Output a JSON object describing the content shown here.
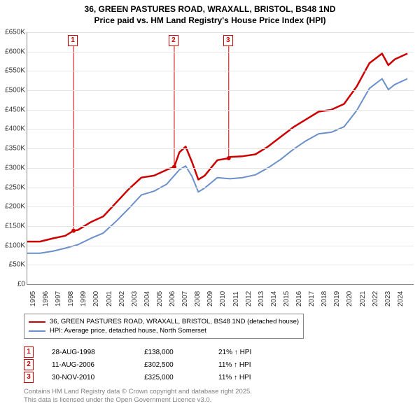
{
  "title": {
    "line1": "36, GREEN PASTURES ROAD, WRAXALL, BRISTOL, BS48 1ND",
    "line2": "Price paid vs. HM Land Registry's House Price Index (HPI)"
  },
  "chart": {
    "type": "line",
    "background_color": "#ffffff",
    "grid_color": "#e5e5e5",
    "axis_color": "#888888",
    "ylim": [
      0,
      650
    ],
    "ytick_step": 50,
    "y_labels": [
      "£0",
      "£50K",
      "£100K",
      "£150K",
      "£200K",
      "£250K",
      "£300K",
      "£350K",
      "£400K",
      "£450K",
      "£500K",
      "£550K",
      "£600K",
      "£650K"
    ],
    "xlim": [
      1995,
      2025.5
    ],
    "x_labels": [
      "1995",
      "1996",
      "1997",
      "1998",
      "1999",
      "2000",
      "2001",
      "2002",
      "2003",
      "2004",
      "2005",
      "2006",
      "2007",
      "2008",
      "2009",
      "2010",
      "2011",
      "2012",
      "2013",
      "2014",
      "2015",
      "2016",
      "2017",
      "2018",
      "2019",
      "2020",
      "2021",
      "2022",
      "2023",
      "2024"
    ],
    "label_fontsize": 10,
    "series": [
      {
        "name": "price_paid",
        "color": "#cc0000",
        "width": 2.5,
        "points": [
          [
            1995,
            110
          ],
          [
            1996,
            110
          ],
          [
            1997,
            118
          ],
          [
            1998,
            125
          ],
          [
            1998.65,
            138
          ],
          [
            1999,
            140
          ],
          [
            2000,
            160
          ],
          [
            2001,
            175
          ],
          [
            2002,
            210
          ],
          [
            2003,
            245
          ],
          [
            2004,
            275
          ],
          [
            2005,
            280
          ],
          [
            2006,
            295
          ],
          [
            2006.6,
            302.5
          ],
          [
            2007,
            340
          ],
          [
            2007.5,
            355
          ],
          [
            2008,
            315
          ],
          [
            2008.5,
            270
          ],
          [
            2009,
            280
          ],
          [
            2010,
            320
          ],
          [
            2010.9,
            325
          ],
          [
            2011,
            328
          ],
          [
            2012,
            330
          ],
          [
            2013,
            335
          ],
          [
            2014,
            355
          ],
          [
            2015,
            380
          ],
          [
            2016,
            405
          ],
          [
            2017,
            425
          ],
          [
            2018,
            445
          ],
          [
            2019,
            450
          ],
          [
            2020,
            465
          ],
          [
            2021,
            510
          ],
          [
            2022,
            570
          ],
          [
            2023,
            595
          ],
          [
            2023.5,
            565
          ],
          [
            2024,
            580
          ],
          [
            2025,
            595
          ]
        ]
      },
      {
        "name": "hpi",
        "color": "#6b8fc9",
        "width": 2,
        "points": [
          [
            1995,
            80
          ],
          [
            1996,
            80
          ],
          [
            1997,
            85
          ],
          [
            1998,
            93
          ],
          [
            1999,
            102
          ],
          [
            2000,
            118
          ],
          [
            2001,
            132
          ],
          [
            2002,
            162
          ],
          [
            2003,
            195
          ],
          [
            2004,
            230
          ],
          [
            2005,
            240
          ],
          [
            2006,
            258
          ],
          [
            2007,
            295
          ],
          [
            2007.5,
            305
          ],
          [
            2008,
            278
          ],
          [
            2008.5,
            238
          ],
          [
            2009,
            248
          ],
          [
            2010,
            275
          ],
          [
            2011,
            272
          ],
          [
            2012,
            275
          ],
          [
            2013,
            282
          ],
          [
            2014,
            300
          ],
          [
            2015,
            322
          ],
          [
            2016,
            348
          ],
          [
            2017,
            370
          ],
          [
            2018,
            388
          ],
          [
            2019,
            392
          ],
          [
            2020,
            406
          ],
          [
            2021,
            448
          ],
          [
            2022,
            505
          ],
          [
            2023,
            530
          ],
          [
            2023.5,
            502
          ],
          [
            2024,
            515
          ],
          [
            2025,
            530
          ]
        ]
      }
    ],
    "markers": [
      {
        "num": "1",
        "x": 1998.65,
        "y": 138
      },
      {
        "num": "2",
        "x": 2006.6,
        "y": 302.5
      },
      {
        "num": "3",
        "x": 2010.9,
        "y": 325
      }
    ]
  },
  "legend": {
    "items": [
      {
        "color": "#cc0000",
        "label": "36, GREEN PASTURES ROAD, WRAXALL, BRISTOL, BS48 1ND (detached house)"
      },
      {
        "color": "#6b8fc9",
        "label": "HPI: Average price, detached house, North Somerset"
      }
    ]
  },
  "events": [
    {
      "num": "1",
      "date": "28-AUG-1998",
      "price": "£138,000",
      "hpi": "21% ↑ HPI"
    },
    {
      "num": "2",
      "date": "11-AUG-2006",
      "price": "£302,500",
      "hpi": "11% ↑ HPI"
    },
    {
      "num": "3",
      "date": "30-NOV-2010",
      "price": "£325,000",
      "hpi": "11% ↑ HPI"
    }
  ],
  "credits": {
    "line1": "Contains HM Land Registry data © Crown copyright and database right 2025.",
    "line2": "This data is licensed under the Open Government Licence v3.0."
  }
}
